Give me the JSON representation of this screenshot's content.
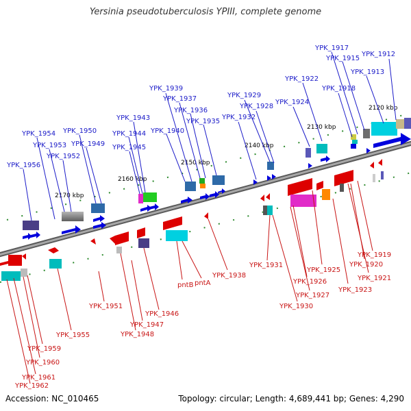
{
  "title": "Yersinia pseudotuberculosis YPIII, complete genome",
  "footer": {
    "accession": "Accession: NC_010465",
    "topology": "Topology: circular; Length: 4,689,441 bp; Genes: 4,290"
  },
  "ticks": [
    "2120 kbp",
    "2130 kbp",
    "2140 kbp",
    "2150 kbp",
    "2160 kbp",
    "2170 kbp"
  ],
  "upper_labels": [
    "YPK_1912",
    "YPK_1913",
    "YPK_1915",
    "YPK_1917",
    "YPK_1918",
    "YPK_1922",
    "YPK_1924",
    "YPK_1928",
    "YPK_1929",
    "YPK_1932",
    "YPK_1935",
    "YPK_1936",
    "YPK_1937",
    "YPK_1939",
    "YPK_1940",
    "YPK_1943",
    "YPK_1944",
    "YPK_1945",
    "YPK_1949",
    "YPK_1950",
    "YPK_1952",
    "YPK_1953",
    "YPK_1954",
    "YPK_1956"
  ],
  "lower_labels": [
    "YPK_1919",
    "YPK_1920",
    "YPK_1921",
    "YPK_1923",
    "YPK_1925",
    "YPK_1926",
    "YPK_1927",
    "YPK_1930",
    "YPK_1931",
    "YPK_1938",
    "pntA",
    "pntB",
    "YPK_1946",
    "YPK_1947",
    "YPK_1948",
    "YPK_1951",
    "YPK_1955",
    "YPK_1959",
    "YPK_1960",
    "YPK_1961",
    "YPK_1962"
  ],
  "colors": {
    "forward_label": "#1a1ac8",
    "reverse_label": "#c81414",
    "backbone": "#8c8c8c",
    "tick": "#2e8b2e"
  }
}
